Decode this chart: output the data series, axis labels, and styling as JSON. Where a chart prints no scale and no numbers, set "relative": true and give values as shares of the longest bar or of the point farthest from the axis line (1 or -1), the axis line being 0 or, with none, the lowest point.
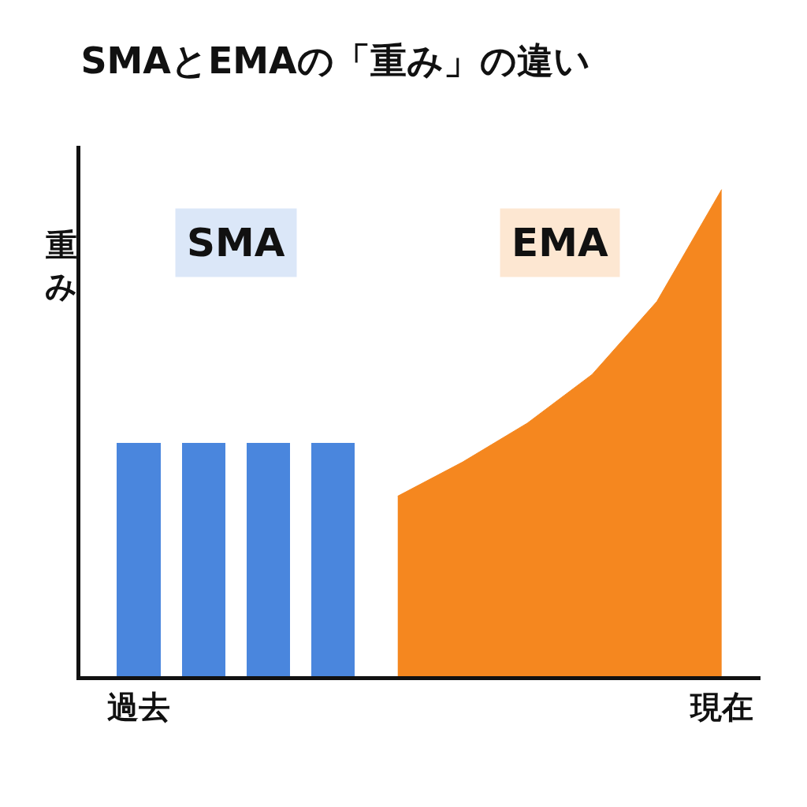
{
  "chart_data": {
    "type": "bar",
    "title": "SMAとEMAの「重み」の違い",
    "ylabel": "重み",
    "relative": true,
    "legend": false,
    "categories": [
      "過去",
      null,
      null,
      null,
      null,
      null,
      null,
      null,
      null,
      "現在"
    ],
    "series": [
      {
        "name": "SMA",
        "color": "#4a86dd",
        "values": [
          0.48,
          0.48,
          0.48,
          0.48,
          null,
          null,
          null,
          null,
          null,
          null
        ]
      },
      {
        "name": "EMA",
        "type": "area",
        "color": "#f5871f",
        "values": [
          null,
          null,
          null,
          null,
          0.37,
          0.44,
          0.52,
          0.62,
          0.77,
          1
        ]
      }
    ]
  }
}
